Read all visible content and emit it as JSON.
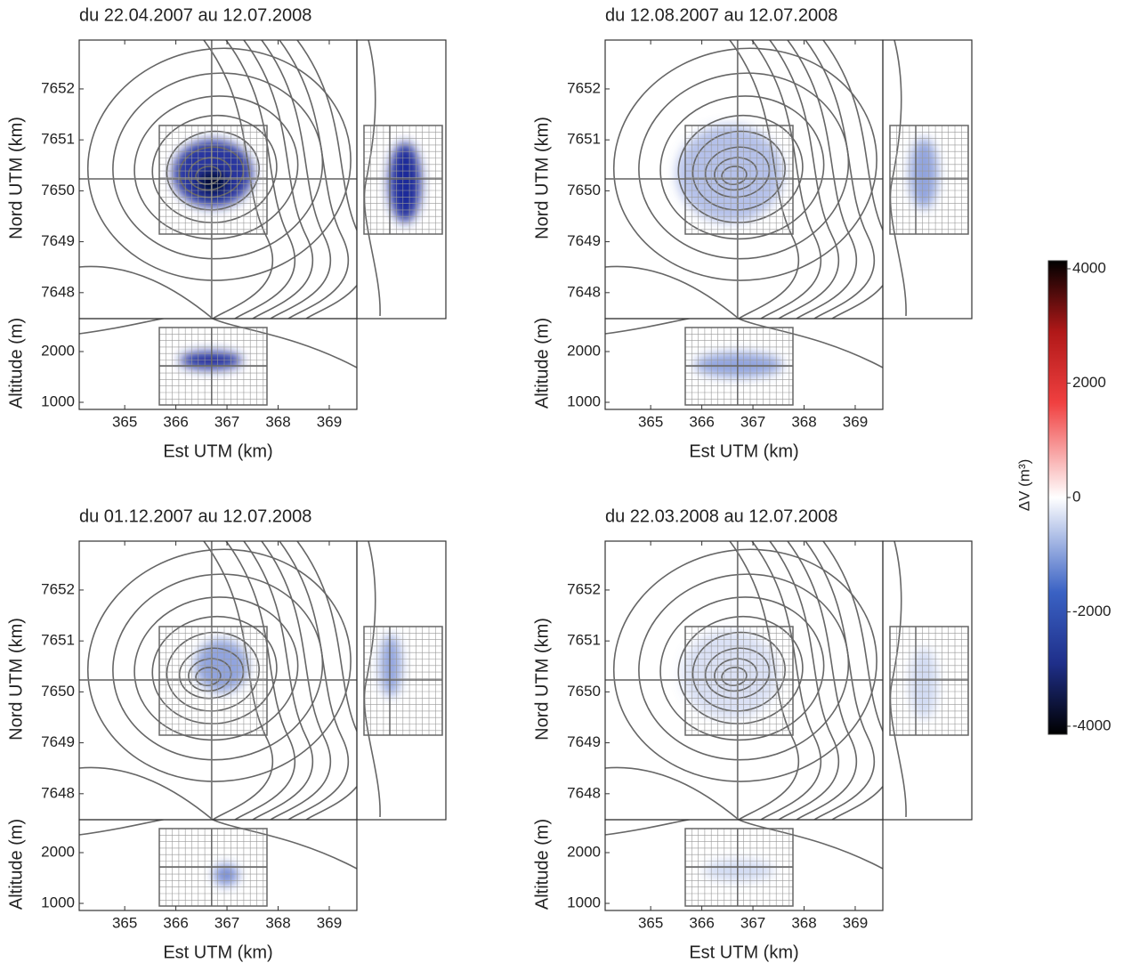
{
  "panels": [
    {
      "title": "du 22.04.2007 au 12.07.2008"
    },
    {
      "title": "du 12.08.2007 au 12.07.2008"
    },
    {
      "title": "du 01.12.2007 au 12.07.2008"
    },
    {
      "title": "du 22.03.2008 au 12.07.2008"
    }
  ],
  "axes": {
    "xlabel": "Est UTM (km)",
    "xticks": [
      365,
      366,
      367,
      368,
      369
    ],
    "xlim": [
      364.11,
      369.54
    ],
    "ylabel": "Nord UTM (km)",
    "yticks": [
      7648,
      7649,
      7650,
      7651,
      7652
    ],
    "ylim": [
      7647.49,
      7652.96
    ],
    "altlabel": "Altitude (m)",
    "altticks": [
      1000,
      2000
    ],
    "altlim": [
      860,
      2649
    ]
  },
  "colorbar": {
    "label": "ΔV (m³)",
    "ticks": [
      -4000,
      -2000,
      0,
      2000,
      4000
    ],
    "lim": [
      -4140,
      4140
    ]
  }
}
